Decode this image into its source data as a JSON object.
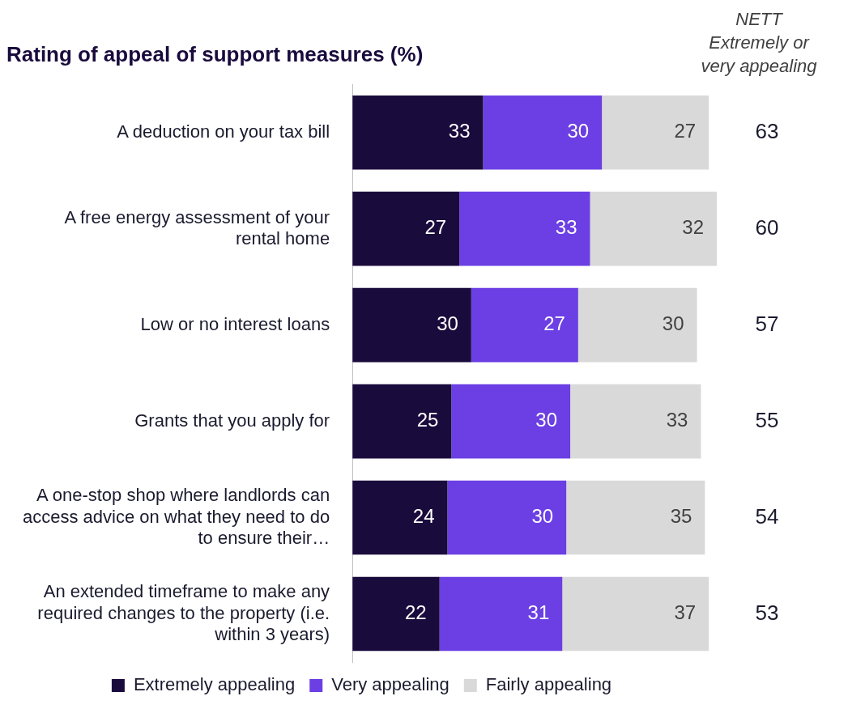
{
  "chart_data": {
    "type": "bar",
    "orientation": "horizontal",
    "stacked": true,
    "title": "Rating of appeal of support measures (%)",
    "categories": [
      "A deduction on your tax bill",
      "A free energy assessment of your rental home",
      "Low or no interest loans",
      "Grants that you apply for",
      "A one-stop shop where landlords can access advice on what they need to do to ensure their…",
      "An extended timeframe to make any required changes to the property (i.e. within 3 years)"
    ],
    "series": [
      {
        "name": "Extremely appealing",
        "color": "#1a0b3d",
        "values": [
          33,
          27,
          30,
          25,
          24,
          22
        ]
      },
      {
        "name": "Very appealing",
        "color": "#6b3fe3",
        "values": [
          30,
          33,
          27,
          30,
          30,
          31
        ]
      },
      {
        "name": "Fairly appealing",
        "color": "#d9d9d9",
        "values": [
          27,
          32,
          30,
          33,
          35,
          37
        ]
      }
    ],
    "data_labels": true,
    "legend": "bottom",
    "grid": false,
    "annotations": [
      "NETT Extremely or very appealing",
      "63",
      "60",
      "57",
      "55",
      "54",
      "53"
    ]
  }
}
